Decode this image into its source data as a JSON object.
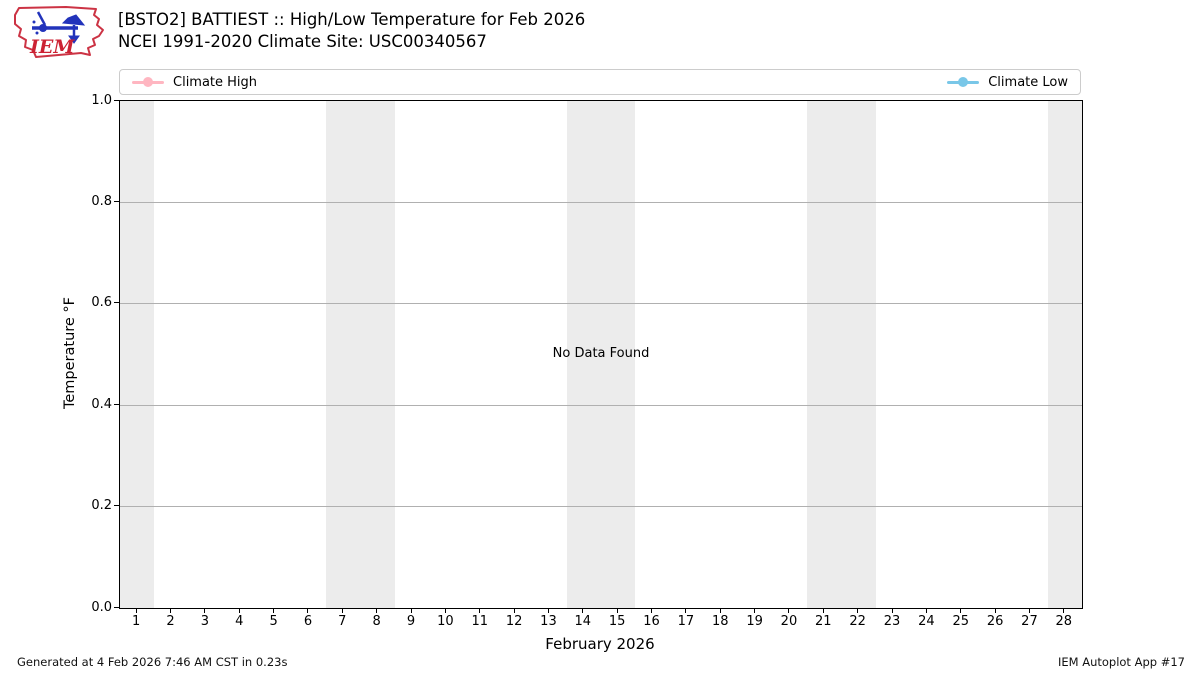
{
  "header": {
    "title_line1": "[BSTO2] BATTIEST :: High/Low Temperature for Feb 2026",
    "title_line2": "NCEI 1991-2020 Climate Site: USC00340567",
    "logo_text": "IEM"
  },
  "legend": {
    "high_label": "Climate High",
    "low_label": "Climate Low",
    "high_color": "#ffb6c1",
    "low_color": "#79c7e8"
  },
  "chart_data": {
    "type": "line",
    "title": "[BSTO2] BATTIEST :: High/Low Temperature for Feb 2026",
    "subtitle": "NCEI 1991-2020 Climate Site: USC00340567",
    "xlabel": "February 2026",
    "ylabel": "Temperature °F",
    "no_data_text": "No Data Found",
    "xlim": [
      0.5,
      28.5
    ],
    "ylim": [
      0.0,
      1.0
    ],
    "xticks": [
      1,
      2,
      3,
      4,
      5,
      6,
      7,
      8,
      9,
      10,
      11,
      12,
      13,
      14,
      15,
      16,
      17,
      18,
      19,
      20,
      21,
      22,
      23,
      24,
      25,
      26,
      27,
      28
    ],
    "yticks": [
      "0.0",
      "0.2",
      "0.4",
      "0.6",
      "0.8",
      "1.0"
    ],
    "ytick_values": [
      0.0,
      0.2,
      0.4,
      0.6,
      0.8,
      1.0
    ],
    "grid": true,
    "grid_color": "#b0b0b0",
    "weekend_bands": [
      [
        0.5,
        1.5
      ],
      [
        6.5,
        8.5
      ],
      [
        13.5,
        15.5
      ],
      [
        20.5,
        22.5
      ],
      [
        27.5,
        28.5
      ]
    ],
    "band_color": "#ececec",
    "legend_position": "top, spanning plot width",
    "series": [
      {
        "name": "Climate High",
        "color": "#ffb6c1",
        "x": [],
        "values": []
      },
      {
        "name": "Climate Low",
        "color": "#79c7e8",
        "x": [],
        "values": []
      }
    ]
  },
  "footer": {
    "generated": "Generated at 4 Feb 2026 7:46 AM CST in 0.23s",
    "app": "IEM Autoplot App #17"
  }
}
